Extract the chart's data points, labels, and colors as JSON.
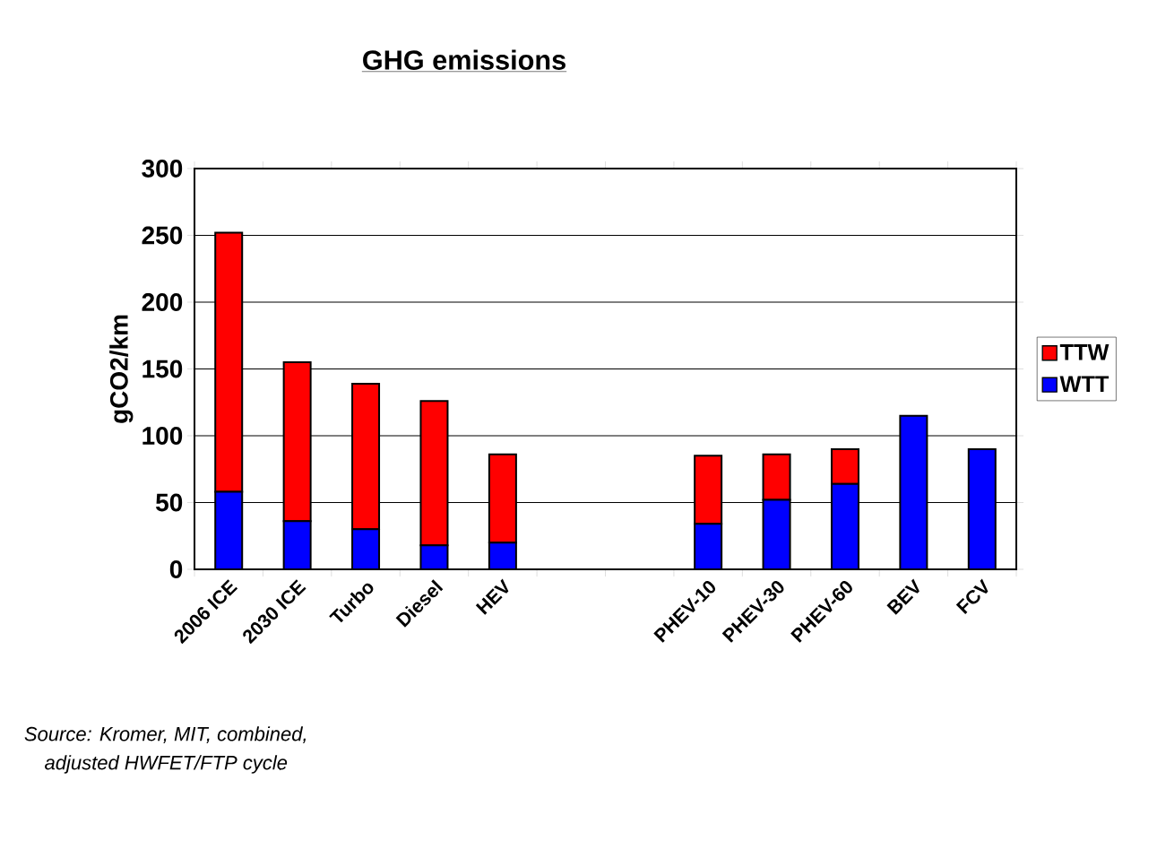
{
  "chart_data": {
    "type": "bar",
    "title": "GHG emissions",
    "ylabel": "gCO2/km",
    "stacked": true,
    "categories": [
      "2006 ICE",
      "2030 ICE",
      "Turbo",
      "Diesel",
      "HEV",
      null,
      null,
      "PHEV-10",
      "PHEV-30",
      "PHEV-60",
      "BEV",
      "FCV"
    ],
    "series": [
      {
        "name": "WTT",
        "color": "#0000ff",
        "values": [
          58,
          36,
          30,
          18,
          20,
          null,
          null,
          34,
          52,
          64,
          115,
          90
        ]
      },
      {
        "name": "TTW",
        "color": "#ff0000",
        "values": [
          194,
          119,
          109,
          108,
          66,
          null,
          null,
          51,
          34,
          26,
          0,
          0
        ]
      }
    ],
    "ylim": [
      0,
      300
    ],
    "yticks": [
      0,
      50,
      100,
      150,
      200,
      250,
      300
    ],
    "grid": "y",
    "legend": "right",
    "annotations": [
      "Source: Kromer, MIT, combined,\nadjusted HWFET/FTP  cycle"
    ]
  }
}
